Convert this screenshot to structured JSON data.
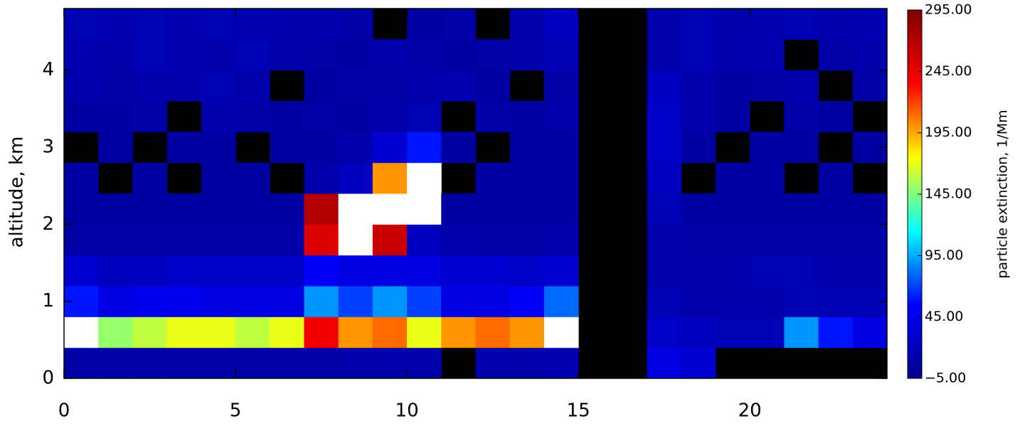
{
  "chart_data": {
    "type": "heatmap",
    "ylabel": "altitude, km",
    "colorbar_label": "particle extinction, 1/Mm",
    "xbins": [
      0,
      1,
      2,
      3,
      4,
      5,
      6,
      7,
      8,
      9,
      10,
      11,
      12,
      13,
      14,
      15,
      16,
      17,
      18,
      19,
      20,
      21,
      22,
      23,
      24
    ],
    "ybins": [
      0,
      0.4,
      0.8,
      1.2,
      1.6,
      2.0,
      2.4,
      2.8,
      3.2,
      3.6,
      4.0,
      4.4,
      4.8
    ],
    "values": [
      [
        8,
        8,
        8,
        8,
        8,
        8,
        8,
        8,
        10,
        10,
        10,
        null,
        10,
        10,
        12,
        null,
        null,
        40,
        30,
        null,
        null,
        null,
        null,
        null
      ],
      [
        300,
        150,
        160,
        170,
        170,
        160,
        170,
        240,
        200,
        210,
        170,
        200,
        210,
        200,
        300,
        null,
        null,
        25,
        20,
        15,
        15,
        90,
        60,
        40
      ],
      [
        60,
        40,
        45,
        45,
        40,
        40,
        40,
        90,
        70,
        90,
        70,
        40,
        40,
        50,
        80,
        null,
        null,
        15,
        10,
        10,
        10,
        15,
        15,
        15
      ],
      [
        30,
        20,
        20,
        25,
        25,
        25,
        25,
        50,
        40,
        40,
        40,
        30,
        30,
        25,
        30,
        null,
        null,
        10,
        10,
        10,
        15,
        15,
        10,
        10
      ],
      [
        8,
        8,
        8,
        8,
        8,
        8,
        8,
        250,
        300,
        260,
        20,
        10,
        8,
        8,
        10,
        null,
        null,
        10,
        8,
        8,
        8,
        8,
        8,
        8
      ],
      [
        5,
        5,
        5,
        5,
        5,
        5,
        5,
        270,
        300,
        300,
        300,
        5,
        5,
        5,
        5,
        null,
        null,
        15,
        5,
        5,
        5,
        5,
        5,
        5
      ],
      [
        5,
        null,
        5,
        null,
        5,
        5,
        null,
        10,
        20,
        200,
        300,
        null,
        5,
        5,
        5,
        null,
        null,
        20,
        null,
        5,
        5,
        null,
        5,
        null
      ],
      [
        null,
        5,
        null,
        5,
        5,
        null,
        5,
        5,
        10,
        30,
        60,
        5,
        null,
        5,
        5,
        null,
        null,
        25,
        5,
        null,
        5,
        5,
        null,
        5
      ],
      [
        5,
        5,
        8,
        null,
        10,
        8,
        5,
        8,
        5,
        10,
        15,
        null,
        8,
        5,
        10,
        null,
        null,
        25,
        10,
        5,
        null,
        8,
        5,
        null
      ],
      [
        10,
        8,
        10,
        10,
        15,
        10,
        null,
        5,
        8,
        8,
        10,
        12,
        5,
        null,
        8,
        null,
        null,
        20,
        10,
        5,
        8,
        10,
        null,
        8
      ],
      [
        12,
        10,
        15,
        12,
        10,
        15,
        10,
        8,
        5,
        10,
        8,
        5,
        8,
        10,
        15,
        null,
        null,
        10,
        15,
        10,
        12,
        null,
        8,
        10
      ],
      [
        15,
        12,
        15,
        12,
        15,
        12,
        10,
        10,
        8,
        null,
        5,
        8,
        null,
        10,
        20,
        null,
        null,
        10,
        15,
        10,
        12,
        15,
        10,
        12
      ]
    ],
    "xlim": [
      0,
      24
    ],
    "ylim": [
      0,
      4.8
    ],
    "xticks": [
      0,
      5,
      10,
      15,
      20
    ],
    "yticks": [
      0,
      1,
      2,
      3,
      4
    ],
    "zlim": [
      -5,
      295
    ],
    "colorscale": [
      "#00008f",
      "#0000ff",
      "#00ffff",
      "#ffff00",
      "#ff0000",
      "#800000"
    ],
    "over_color": "#ffffff",
    "missing_color": "#000000",
    "colorbar_ticks": [
      {
        "value": 295,
        "label": "295.00"
      },
      {
        "value": 245,
        "label": "245.00"
      },
      {
        "value": 195,
        "label": "195.00"
      },
      {
        "value": 145,
        "label": "145.00"
      },
      {
        "value": 95,
        "label": "95.00"
      },
      {
        "value": 45,
        "label": "45.00"
      },
      {
        "value": -5,
        "label": "−5.00"
      }
    ]
  }
}
